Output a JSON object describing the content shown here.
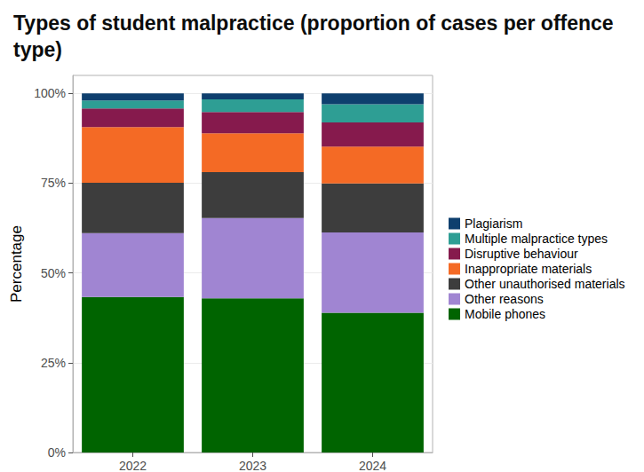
{
  "chart_data": {
    "type": "bar",
    "title": "Types of student malpractice (proportion of cases per offence type)",
    "y_label": "Percentage",
    "categories": [
      "2022",
      "2023",
      "2024"
    ],
    "stacked": true,
    "grid": true,
    "legend": "right",
    "series": [
      {
        "name": "Mobile phones",
        "color": "#006400",
        "values": [
          43.3,
          42.9,
          38.9
        ]
      },
      {
        "name": "Other reasons",
        "color": "#a085d2",
        "values": [
          17.8,
          22.4,
          22.4
        ]
      },
      {
        "name": "Other unauthorised materials",
        "color": "#3d3d3d",
        "values": [
          14.0,
          12.8,
          13.6
        ]
      },
      {
        "name": "Inappropriate materials",
        "color": "#f46a25",
        "values": [
          15.5,
          10.8,
          10.3
        ]
      },
      {
        "name": "Disruptive behaviour",
        "color": "#861a4d",
        "values": [
          5.2,
          5.9,
          6.7
        ]
      },
      {
        "name": "Multiple malpractice types",
        "color": "#2e9e94",
        "values": [
          2.2,
          3.5,
          5.1
        ]
      },
      {
        "name": "Plagiarism",
        "color": "#0e3f6e",
        "values": [
          2.0,
          1.7,
          3.0
        ]
      }
    ],
    "ylim": [
      0,
      105
    ],
    "yticks": [
      {
        "value": 0,
        "label": "0%"
      },
      {
        "value": 25,
        "label": "25%"
      },
      {
        "value": 50,
        "label": "50%"
      },
      {
        "value": 75,
        "label": "75%"
      },
      {
        "value": 100,
        "label": "100%"
      }
    ]
  }
}
